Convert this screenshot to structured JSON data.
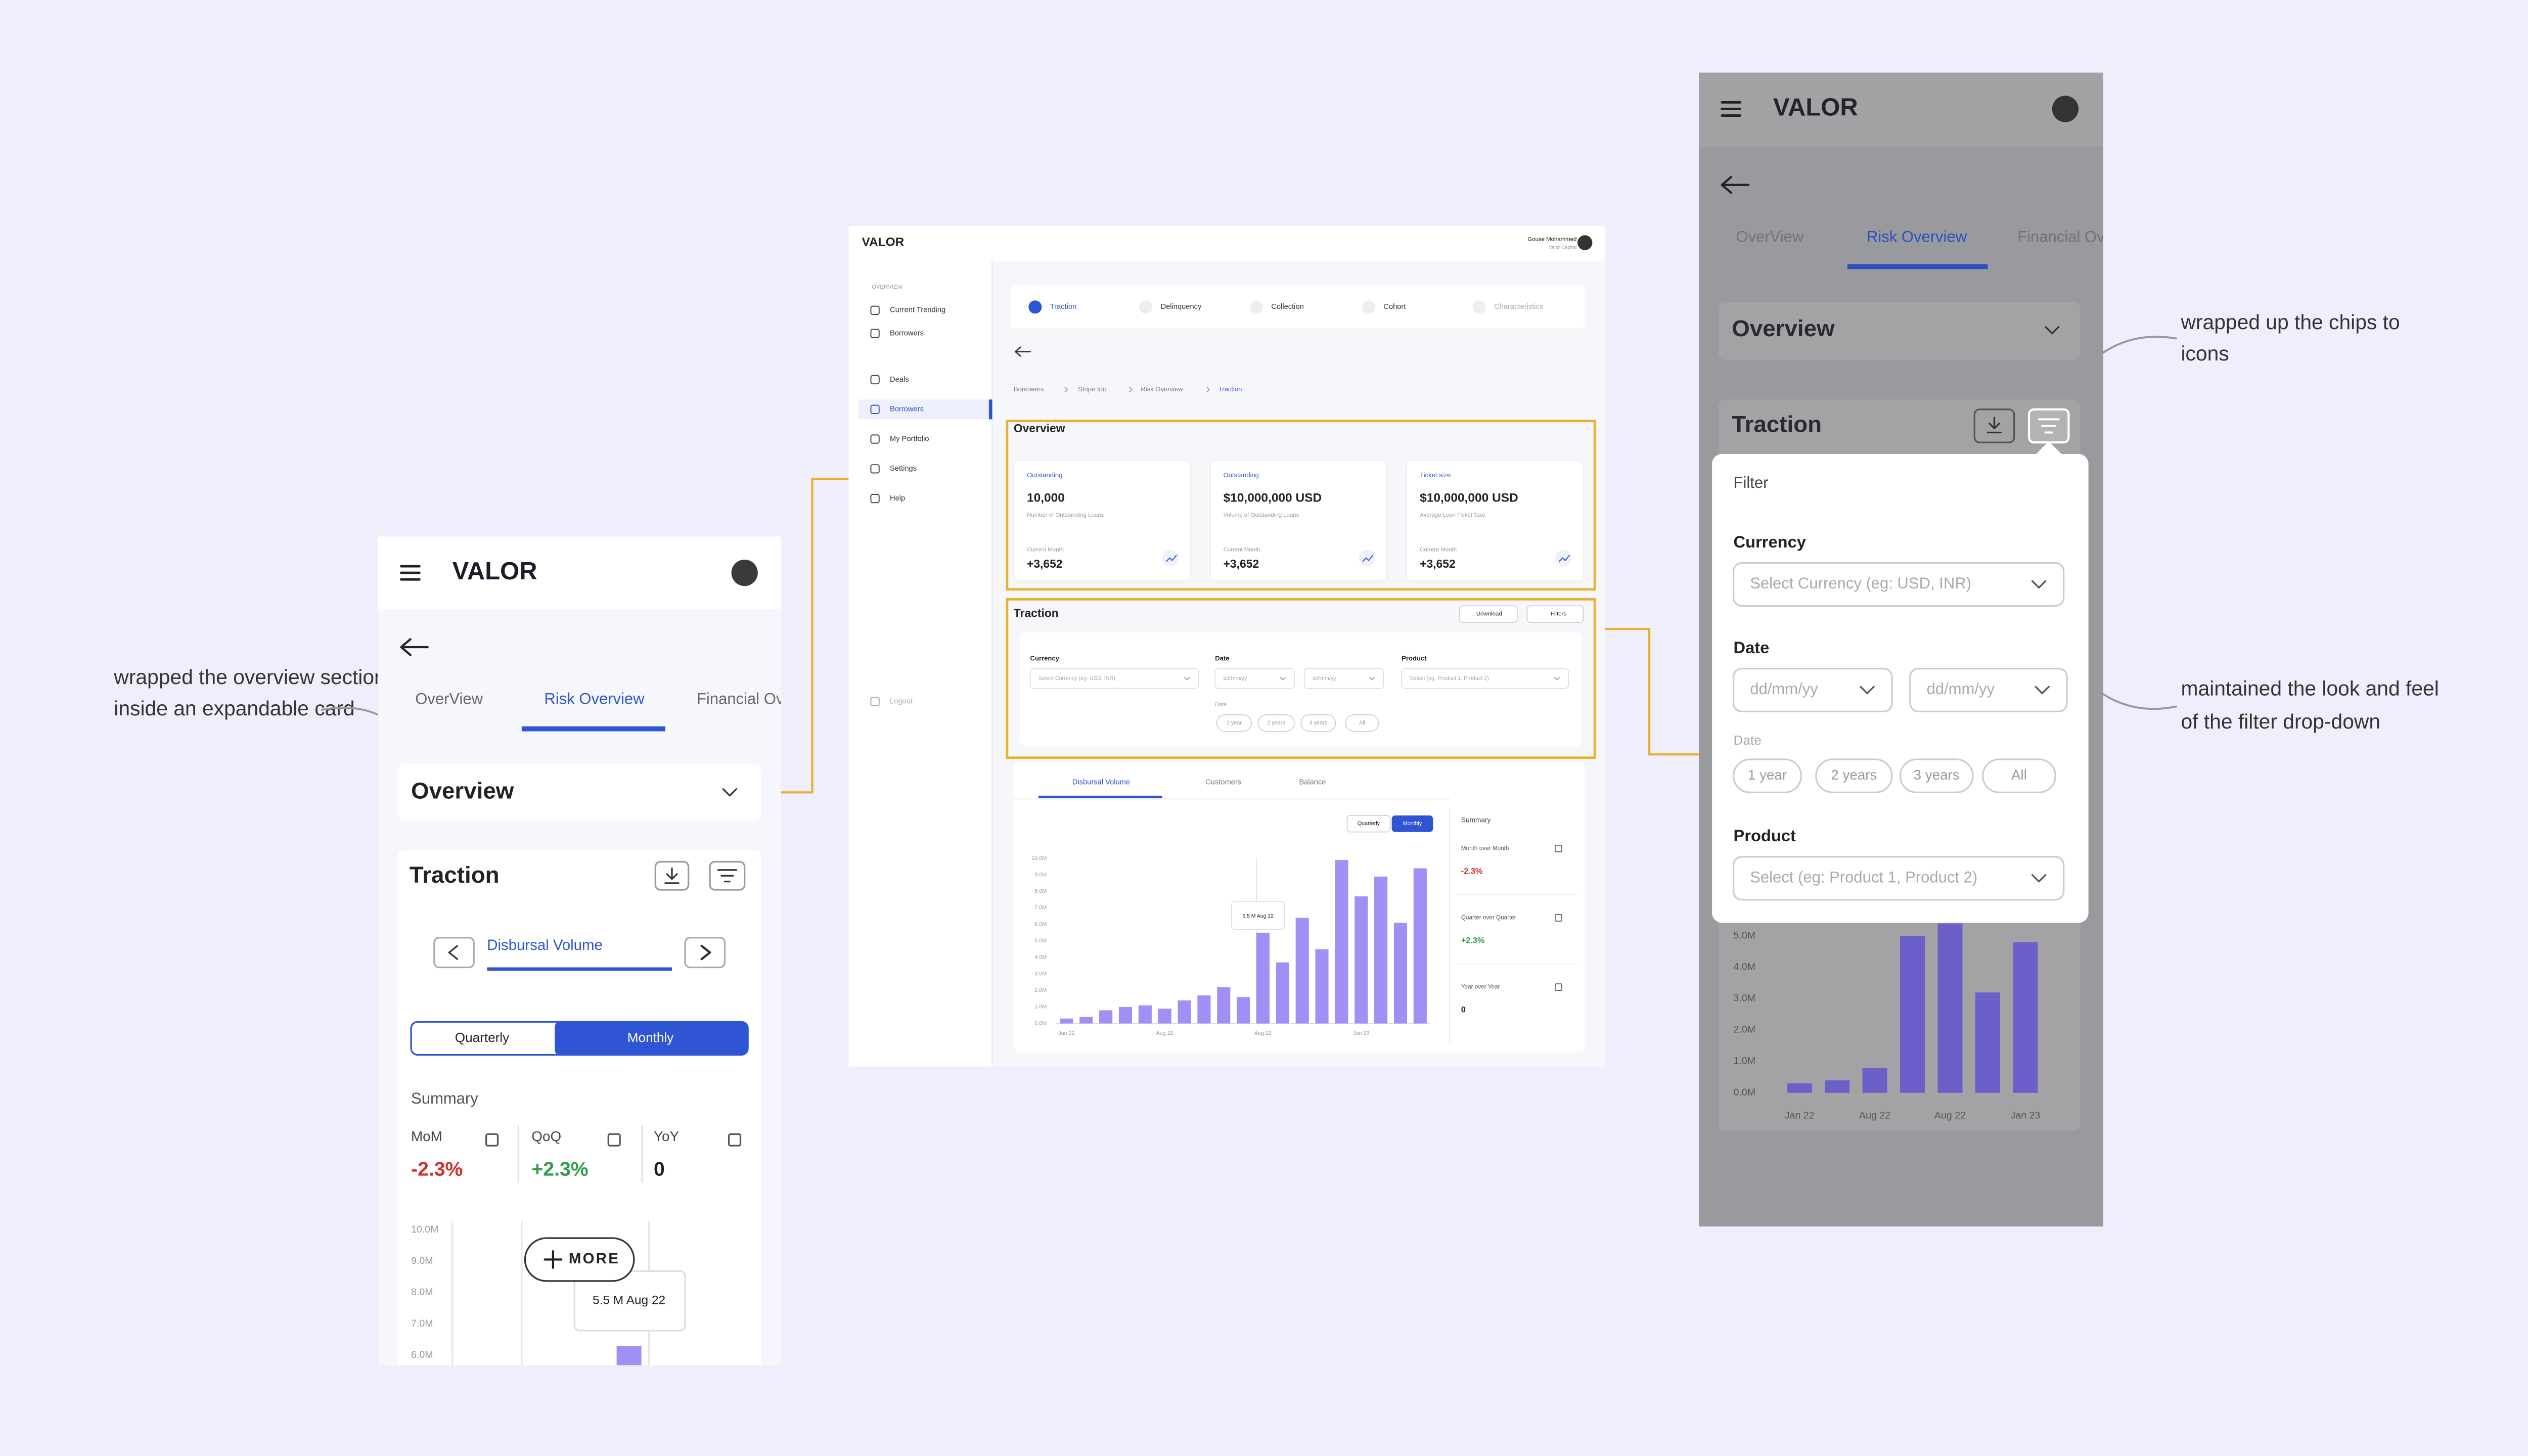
{
  "annotations": {
    "overview_card": [
      "wrapped the overview section",
      "inside an expandable card"
    ],
    "chips": [
      "wrapped up the chips to",
      "icons"
    ],
    "filter": [
      "maintained the look and feel",
      "of the filter drop-down"
    ]
  },
  "mobile_left": {
    "brand": "VALOR",
    "tabs": [
      "OverView",
      "Risk Overview",
      "Financial Overview"
    ],
    "overview": "Overview",
    "traction": "Traction",
    "metric": "Disbursal Volume",
    "toggle": [
      "Quarterly",
      "Monthly"
    ],
    "summary": "Summary",
    "stats": [
      {
        "label": "MoM",
        "value": "-2.3%"
      },
      {
        "label": "QoQ",
        "value": "+2.3%"
      },
      {
        "label": "YoY",
        "value": "0"
      }
    ],
    "more": "MORE",
    "tooltip": "5.5 M Aug 22",
    "chart": {
      "type": "bar",
      "color": "#a08ff5",
      "values": [
        6.3
      ],
      "ylim": [
        6,
        10
      ],
      "yticks": [
        {
          "value": 10,
          "label": "10.0M"
        },
        {
          "value": 9,
          "label": "9.0M"
        },
        {
          "value": 8,
          "label": "8.0M"
        },
        {
          "value": 7,
          "label": "7.0M"
        },
        {
          "value": 6,
          "label": "6.0M"
        }
      ]
    }
  },
  "desktop": {
    "brand": "VALOR",
    "user": "Gouse Mohammed",
    "org": "Valor Capital",
    "sidebar": {
      "section": "OVERVIEW",
      "items": [
        "Current Trending",
        "Borrowers",
        "Deals",
        "Borrowers",
        "My Portfolio",
        "Settings",
        "Help"
      ],
      "logout": "Logout"
    },
    "tabs": [
      "Traction",
      "Delinquency",
      "Collection",
      "Cohort",
      "Characteristics"
    ],
    "breadcrumb": [
      "Borrowers",
      "Stripe Inc.",
      "Risk Overview",
      "Traction"
    ],
    "overview": {
      "title": "Overview",
      "cards": [
        {
          "label": "Outstanding",
          "value": "10,000",
          "caption": "Number of Outstanding Loans",
          "period": "Current Month",
          "change": "+3,652"
        },
        {
          "label": "Outstanding",
          "value": "$10,000,000 USD",
          "caption": "Volume of Outstanding Loans",
          "period": "Current Month",
          "change": "+3,652"
        },
        {
          "label": "Ticket size",
          "value": "$10,000,000 USD",
          "caption": "Average Loan Ticket Size",
          "period": "Current Month",
          "change": "+3,652"
        }
      ]
    },
    "traction": {
      "title": "Traction",
      "buttons": [
        "Download",
        "Filters"
      ],
      "filters": {
        "currency": "Currency",
        "currency_placeholder": "Select Currency (eg: USD, INR)",
        "date": "Date",
        "date_placeholder": "dd/mm/yy",
        "product": "Product",
        "product_placeholder": "Select (eg: Product 1, Product 2)",
        "range_label": "Date",
        "ranges": [
          "1 year",
          "2 years",
          "3 years",
          "All"
        ]
      }
    },
    "chart_tabs": [
      "Disbursal Volume",
      "Customers",
      "Balance"
    ],
    "toggle": [
      "Quarterly",
      "Monthly"
    ],
    "summary": {
      "title": "Summary",
      "items": [
        {
          "label": "Month over Month",
          "value": "-2.3%"
        },
        {
          "label": "Quarter over Quarter",
          "value": "+2.3%"
        },
        {
          "label": "Year over Year",
          "value": "0"
        }
      ]
    },
    "tooltip": "5.5 M Aug 22",
    "chart": {
      "type": "bar",
      "color": "#a08ff5",
      "categories": [
        "Jan 22",
        null,
        null,
        null,
        null,
        "Aug 22",
        null,
        null,
        null,
        null,
        "Aug 22",
        null,
        null,
        null,
        null,
        "Jan 23",
        null,
        null,
        null
      ],
      "values": [
        0.3,
        0.4,
        0.8,
        1.0,
        1.1,
        0.9,
        1.4,
        1.7,
        2.2,
        1.6,
        5.5,
        3.7,
        6.4,
        4.5,
        9.9,
        7.7,
        8.9,
        6.1,
        9.4
      ],
      "ylim": [
        0,
        10
      ],
      "yticks": [
        {
          "value": 0,
          "label": "0.0M"
        },
        {
          "value": 1,
          "label": "1.0M"
        },
        {
          "value": 2,
          "label": "2.0M"
        },
        {
          "value": 3,
          "label": "3.0M"
        },
        {
          "value": 4,
          "label": "4.0M"
        },
        {
          "value": 5,
          "label": "5.0M"
        },
        {
          "value": 6,
          "label": "6.0M"
        },
        {
          "value": 7,
          "label": "7.0M"
        },
        {
          "value": 8,
          "label": "8.0M"
        },
        {
          "value": 9,
          "label": "9.0M"
        },
        {
          "value": 10,
          "label": "10.0M"
        }
      ]
    }
  },
  "mobile_right": {
    "brand": "VALOR",
    "tabs": [
      "OverView",
      "Risk Overview",
      "Financial Overview"
    ],
    "overview": "Overview",
    "traction": "Traction",
    "filter": {
      "title": "Filter",
      "currency": "Currency",
      "currency_placeholder": "Select Currency (eg: USD, INR)",
      "date": "Date",
      "date_placeholder": "dd/mm/yy",
      "range_label": "Date",
      "ranges": [
        "1 year",
        "2 years",
        "3 years",
        "All"
      ],
      "product": "Product",
      "product_placeholder": "Select (eg: Product 1, Product 2)"
    },
    "chart": {
      "type": "bar",
      "color": "#6b5fc9",
      "categories": [
        "Jan 22",
        null,
        "Aug 22",
        null,
        "Aug 22",
        null,
        "Jan 23"
      ],
      "values": [
        0.3,
        0.4,
        0.8,
        5.0,
        5.4,
        3.2,
        4.8
      ],
      "ylim": [
        0,
        5
      ],
      "yticks": [
        {
          "value": 5,
          "label": "5.0M"
        },
        {
          "value": 4,
          "label": "4.0M"
        },
        {
          "value": 3,
          "label": "3.0M"
        },
        {
          "value": 2,
          "label": "2.0M"
        },
        {
          "value": 1,
          "label": "1.0M"
        },
        {
          "value": 0,
          "label": "0.0M"
        }
      ]
    }
  }
}
